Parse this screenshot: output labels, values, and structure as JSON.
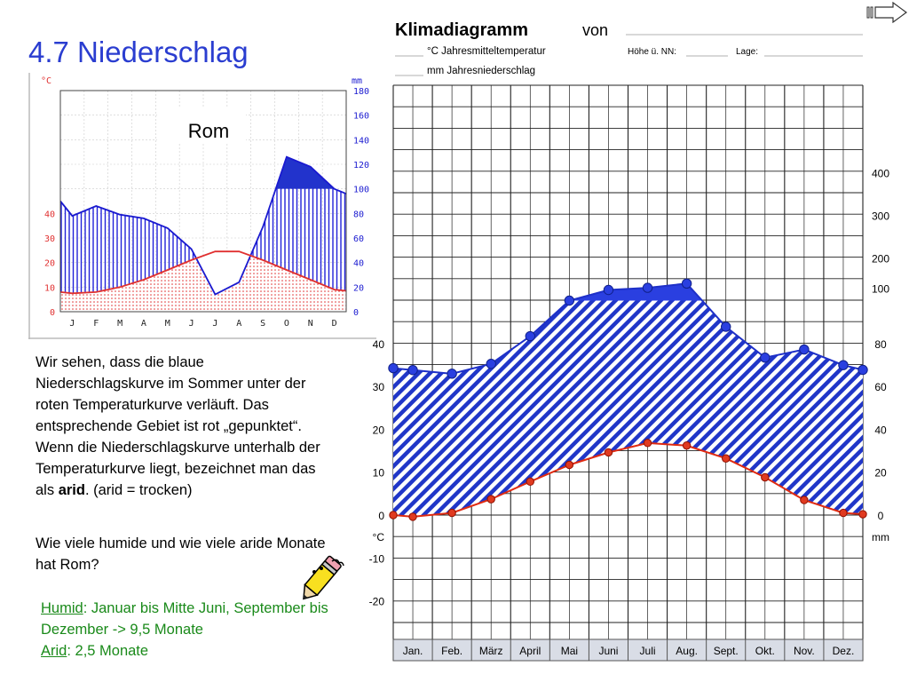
{
  "slide": {
    "title": "4.7 Niederschlag",
    "paragraph_parts": [
      "Wir sehen, dass die blaue Niederschlagskurve im Sommer unter der roten Temperaturkurve verläuft. Das entsprechende Gebiet ist rot „gepunktet“. Wenn die Niederschlagskurve unterhalb der Temperaturkurve liegt, bezeichnet man das als ",
      "arid",
      ". (arid = trocken)"
    ],
    "question": "Wie viele humide und wie viele aride Monate hat Rom?",
    "answer": {
      "humid_label": "Humid",
      "humid_text": ": Januar bis Mitte Juni, September bis Dezember -> 9,5 Monate",
      "arid_label": "Arid",
      "arid_text": ": 2,5 Monate"
    },
    "icons": [
      "next-arrow-icon",
      "pencil-icon"
    ]
  },
  "chart_data": [
    {
      "type": "line",
      "title": "Rom",
      "left_unit": "°C",
      "right_unit": "mm",
      "categories": [
        "J",
        "F",
        "M",
        "A",
        "M",
        "J",
        "J",
        "A",
        "S",
        "O",
        "N",
        "D"
      ],
      "left_ticks": [
        "0",
        "10",
        "20",
        "30",
        "40"
      ],
      "right_ticks": [
        "0",
        "20",
        "40",
        "60",
        "80",
        "100",
        "120",
        "140",
        "160",
        "180"
      ],
      "ylim_temp": [
        0,
        90
      ],
      "ylim_precip": [
        0,
        180
      ],
      "temp_x": [
        0,
        0.5,
        1.5,
        2.5,
        3.5,
        4.5,
        5.5,
        6.5,
        7.5,
        8.5,
        9.5,
        10.5,
        11.5,
        12
      ],
      "temp_values": [
        8,
        7.5,
        8,
        10,
        13,
        17,
        21,
        24.5,
        24.5,
        21,
        17,
        13,
        9,
        8.5
      ],
      "precip_x": [
        0,
        0.5,
        1.5,
        2.5,
        3.5,
        4.5,
        5.5,
        6.5,
        7.5,
        8.5,
        9.5,
        10.5,
        11.5,
        12
      ],
      "precip_values": [
        90,
        78,
        86,
        79,
        76,
        68,
        51,
        14,
        24,
        69,
        126,
        118,
        100,
        96
      ],
      "colors": {
        "precip": "#1a1ad0",
        "temp": "#e03030"
      }
    },
    {
      "type": "line",
      "title": "Klimadiagramm",
      "title_suffix": "von",
      "blanks": {
        "temp_label": "°C Jahresmitteltemperatur",
        "precip_label": "mm Jahresniederschlag",
        "height_label": "Höhe ü. NN:",
        "location_label": "Lage:"
      },
      "left_unit": "°C",
      "right_unit": "mm",
      "categories": [
        "Jan.",
        "Feb.",
        "März",
        "April",
        "Mai",
        "Juni",
        "Juli",
        "Aug.",
        "Sept.",
        "Okt.",
        "Nov.",
        "Dez."
      ],
      "left_ticks": [
        "40",
        "30",
        "20",
        "10",
        "0",
        "-10",
        "-20"
      ],
      "right_ticks": [
        "400",
        "300",
        "200",
        "100",
        "80",
        "60",
        "40",
        "20",
        "0"
      ],
      "temp_x": [
        0,
        0.5,
        1.5,
        2.5,
        3.5,
        4.5,
        5.5,
        6.5,
        7.5,
        8.5,
        9.5,
        10.5,
        11.5,
        12
      ],
      "temp_values": [
        0,
        -0.4,
        0.5,
        3.7,
        7.8,
        11.7,
        14.6,
        16.8,
        16.2,
        13.2,
        8.8,
        3.5,
        0.5,
        0.2
      ],
      "precip_x": [
        0,
        0.5,
        1.5,
        2.5,
        3.5,
        4.5,
        5.5,
        6.5,
        7.5,
        8.5,
        9.5,
        10.5,
        11.5,
        12
      ],
      "precip_values": [
        68.5,
        67.6,
        65.9,
        70.5,
        83.4,
        100,
        125,
        130,
        140,
        87.8,
        73.4,
        77.2,
        69.9,
        67.7
      ],
      "colors": {
        "precip": "#1e30c8",
        "temp": "#e02a10"
      }
    }
  ]
}
